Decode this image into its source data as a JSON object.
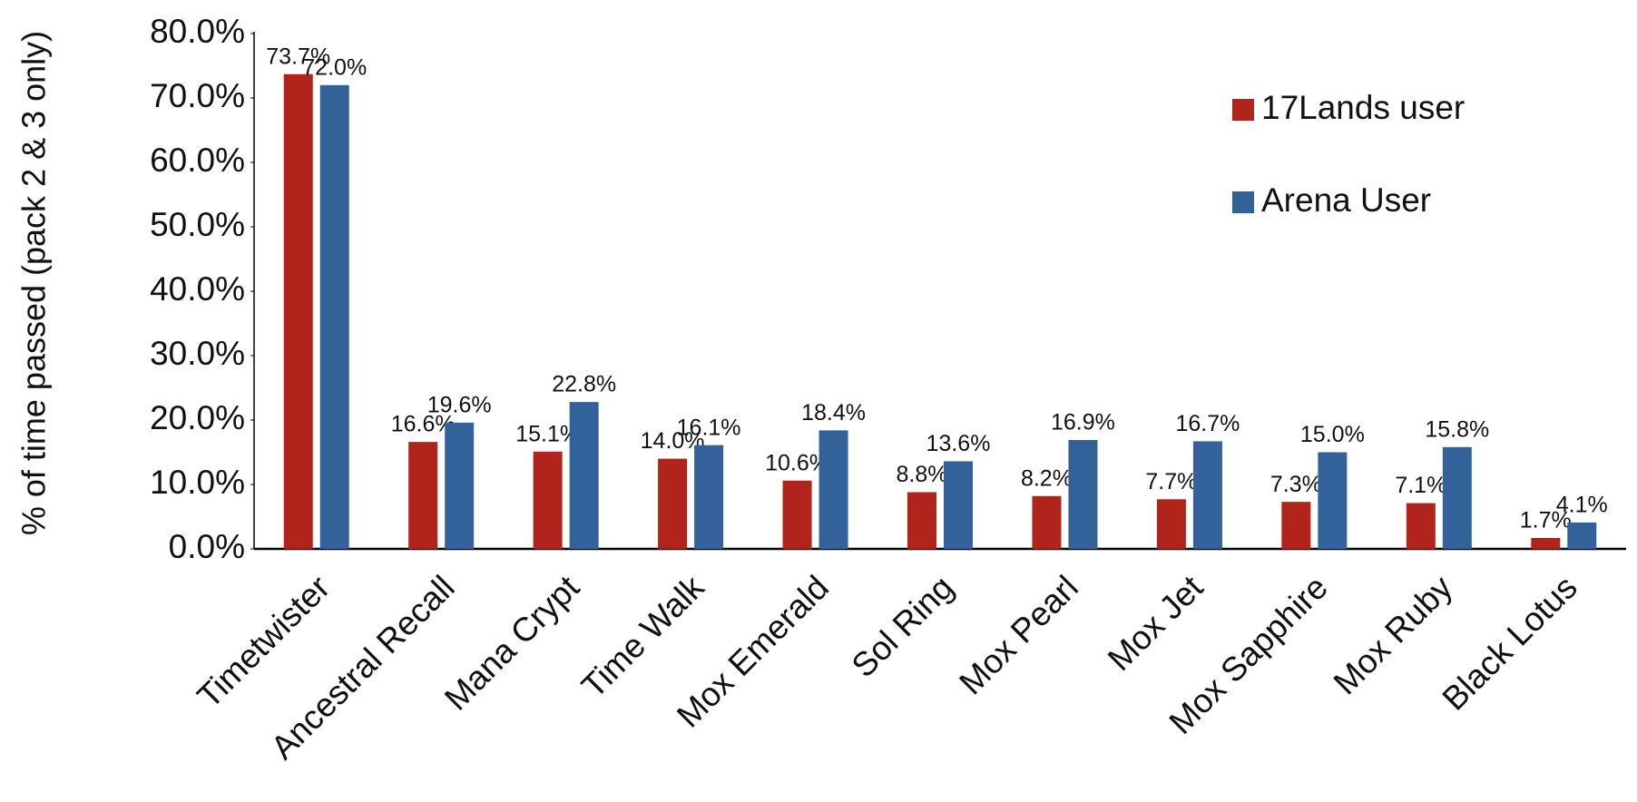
{
  "chart_data": {
    "type": "bar",
    "y_label": "% of time passed (pack 2 & 3 only)",
    "categories": [
      "Timetwister",
      "Ancestral Recall",
      "Mana Crypt",
      "Time Walk",
      "Mox Emerald",
      "Sol Ring",
      "Mox Pearl",
      "Mox Jet",
      "Mox Sapphire",
      "Mox Ruby",
      "Black Lotus"
    ],
    "series": [
      {
        "name": "17Lands user",
        "color": "#b0241b",
        "values": [
          73.7,
          16.6,
          15.1,
          14.0,
          10.6,
          8.8,
          8.2,
          7.7,
          7.3,
          7.1,
          1.7
        ],
        "value_labels": [
          "73.7%",
          "16.6%",
          "15.1%",
          "14.0%",
          "10.6%",
          "8.8%",
          "8.2%",
          "7.7%",
          "7.3%",
          "7.1%",
          "1.7%"
        ]
      },
      {
        "name": "Arena User",
        "color": "#336199",
        "values": [
          72.0,
          19.6,
          22.8,
          16.1,
          18.4,
          13.6,
          16.9,
          16.7,
          15.0,
          15.8,
          4.1
        ],
        "value_labels": [
          "72.0%",
          "19.6%",
          "22.8%",
          "16.1%",
          "18.4%",
          "13.6%",
          "16.9%",
          "16.7%",
          "15.0%",
          "15.8%",
          "4.1%"
        ]
      }
    ],
    "ylim": [
      0,
      80
    ],
    "yticks": [
      {
        "value": 0,
        "label": "0.0%"
      },
      {
        "value": 10,
        "label": "10.0%"
      },
      {
        "value": 20,
        "label": "20.0%"
      },
      {
        "value": 30,
        "label": "30.0%"
      },
      {
        "value": 40,
        "label": "40.0%"
      },
      {
        "value": 50,
        "label": "50.0%"
      },
      {
        "value": 60,
        "label": "60.0%"
      },
      {
        "value": 70,
        "label": "70.0%"
      },
      {
        "value": 80,
        "label": "80.0%"
      }
    ],
    "grid": false,
    "legend": "top-right"
  }
}
